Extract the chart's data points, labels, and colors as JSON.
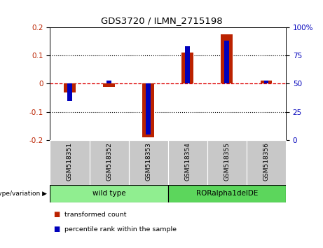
{
  "title": "GDS3720 / ILMN_2715198",
  "samples": [
    "GSM518351",
    "GSM518352",
    "GSM518353",
    "GSM518354",
    "GSM518355",
    "GSM518356"
  ],
  "red_values": [
    -0.03,
    -0.01,
    -0.19,
    0.11,
    0.175,
    0.01
  ],
  "blue_values_pct": [
    35,
    53,
    5,
    83,
    88,
    53
  ],
  "ylim_left": [
    -0.2,
    0.2
  ],
  "ylim_right": [
    0,
    100
  ],
  "yticks_left": [
    -0.2,
    -0.1,
    0.0,
    0.1,
    0.2
  ],
  "yticks_right": [
    0,
    25,
    50,
    75,
    100
  ],
  "ytick_labels_left": [
    "-0.2",
    "-0.1",
    "0",
    "0.1",
    "0.2"
  ],
  "ytick_labels_right": [
    "0",
    "25",
    "50",
    "75",
    "100%"
  ],
  "groups": [
    {
      "label": "wild type",
      "indices": [
        0,
        1,
        2
      ],
      "color": "#90EE90"
    },
    {
      "label": "RORalpha1delDE",
      "indices": [
        3,
        4,
        5
      ],
      "color": "#5CD65C"
    }
  ],
  "group_label": "genotype/variation",
  "legend_red": "transformed count",
  "legend_blue": "percentile rank within the sample",
  "red_color": "#BB2200",
  "blue_color": "#0000BB",
  "red_bar_width": 0.3,
  "blue_bar_width": 0.12,
  "zero_line_color": "#DD0000",
  "sample_box_color": "#C8C8C8",
  "background_plot": "#FFFFFF",
  "background_fig": "#FFFFFF"
}
